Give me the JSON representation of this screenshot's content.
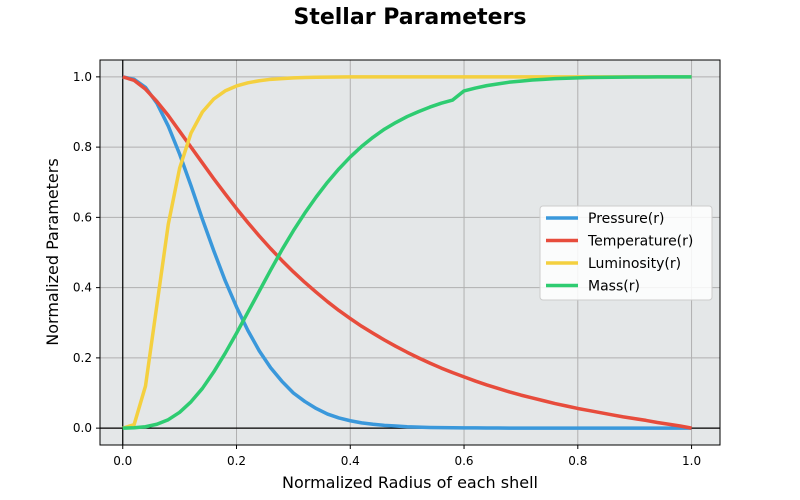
{
  "chart_data": {
    "type": "line",
    "title": "Stellar Parameters",
    "xlabel": "Normalized Radius of each shell",
    "ylabel": "Normalized Parameters",
    "xlim": [
      -0.04,
      1.05
    ],
    "ylim": [
      -0.048,
      1.048
    ],
    "xticks": [
      0.0,
      0.2,
      0.4,
      0.6,
      0.8,
      1.0
    ],
    "xtick_labels": [
      "0.0",
      "0.2",
      "0.4",
      "0.6",
      "0.8",
      "1.0"
    ],
    "yticks": [
      0.0,
      0.2,
      0.4,
      0.6,
      0.8,
      1.0
    ],
    "ytick_labels": [
      "0.0",
      "0.2",
      "0.4",
      "0.6",
      "0.8",
      "1.0"
    ],
    "grid": true,
    "legend_position": "center-right",
    "background": "#e4e7e8",
    "x": [
      0.0,
      0.02,
      0.04,
      0.06,
      0.08,
      0.1,
      0.12,
      0.14,
      0.16,
      0.18,
      0.2,
      0.22,
      0.24,
      0.26,
      0.28,
      0.3,
      0.32,
      0.34,
      0.36,
      0.38,
      0.4,
      0.42,
      0.44,
      0.46,
      0.48,
      0.5,
      0.52,
      0.54,
      0.56,
      0.58,
      0.6,
      0.62,
      0.64,
      0.66,
      0.68,
      0.7,
      0.72,
      0.74,
      0.76,
      0.78,
      0.8,
      0.82,
      0.84,
      0.86,
      0.88,
      0.9,
      0.92,
      0.94,
      0.96,
      0.98,
      1.0
    ],
    "series": [
      {
        "name": "Pressure(r)",
        "color": "#3a98db",
        "values": [
          1.0,
          0.993,
          0.97,
          0.925,
          0.86,
          0.78,
          0.69,
          0.595,
          0.505,
          0.42,
          0.345,
          0.278,
          0.22,
          0.172,
          0.133,
          0.1,
          0.076,
          0.056,
          0.04,
          0.029,
          0.021,
          0.015,
          0.011,
          0.008,
          0.006,
          0.004,
          0.003,
          0.002,
          0.0015,
          0.001,
          0.0008,
          0.0006,
          0.0004,
          0.0003,
          0.0002,
          0.0002,
          0.0001,
          0.0001,
          0.0001,
          0.0,
          0.0,
          0.0,
          0.0,
          0.0,
          0.0,
          0.0,
          0.0,
          0.0,
          0.0,
          0.0,
          0.0
        ]
      },
      {
        "name": "Temperature(r)",
        "color": "#e74c3c",
        "values": [
          1.0,
          0.99,
          0.965,
          0.93,
          0.89,
          0.845,
          0.8,
          0.755,
          0.71,
          0.667,
          0.625,
          0.585,
          0.547,
          0.511,
          0.477,
          0.445,
          0.415,
          0.387,
          0.36,
          0.335,
          0.312,
          0.29,
          0.27,
          0.251,
          0.233,
          0.216,
          0.2,
          0.185,
          0.171,
          0.158,
          0.146,
          0.134,
          0.123,
          0.113,
          0.103,
          0.094,
          0.086,
          0.078,
          0.07,
          0.063,
          0.056,
          0.05,
          0.044,
          0.038,
          0.032,
          0.027,
          0.022,
          0.016,
          0.011,
          0.006,
          0.0
        ]
      },
      {
        "name": "Luminosity(r)",
        "color": "#f4d03f",
        "values": [
          0.0,
          0.01,
          0.12,
          0.35,
          0.58,
          0.74,
          0.84,
          0.9,
          0.937,
          0.96,
          0.974,
          0.983,
          0.989,
          0.993,
          0.995,
          0.997,
          0.998,
          0.999,
          0.9993,
          0.9996,
          0.9998,
          1.0,
          1.0,
          1.0,
          1.0,
          1.0,
          1.0,
          1.0,
          1.0,
          1.0,
          1.0,
          1.0,
          1.0,
          1.0,
          1.0,
          1.0,
          1.0,
          1.0,
          1.0,
          1.0,
          1.0,
          1.0,
          1.0,
          1.0,
          1.0,
          1.0,
          1.0,
          1.0,
          1.0,
          1.0,
          1.0
        ]
      },
      {
        "name": "Mass(r)",
        "color": "#2ecc71",
        "values": [
          0.0,
          0.001,
          0.004,
          0.011,
          0.024,
          0.045,
          0.075,
          0.113,
          0.16,
          0.213,
          0.27,
          0.33,
          0.39,
          0.45,
          0.508,
          0.562,
          0.612,
          0.658,
          0.7,
          0.738,
          0.772,
          0.802,
          0.828,
          0.851,
          0.87,
          0.887,
          0.901,
          0.914,
          0.925,
          0.934,
          0.96,
          0.968,
          0.975,
          0.98,
          0.985,
          0.988,
          0.991,
          0.993,
          0.995,
          0.996,
          0.997,
          0.998,
          0.9985,
          0.999,
          0.9993,
          0.9995,
          0.9997,
          0.9998,
          0.9999,
          1.0,
          1.0
        ]
      }
    ]
  }
}
